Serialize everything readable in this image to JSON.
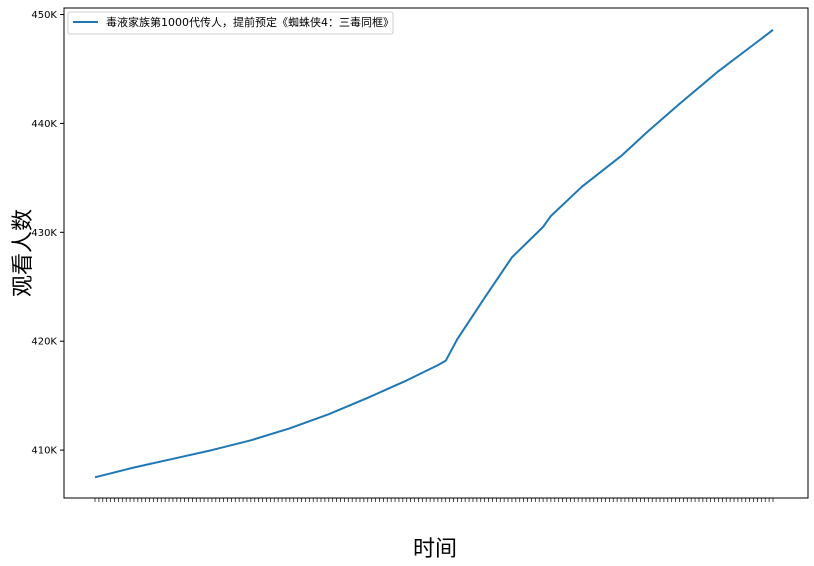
{
  "chart_data": {
    "type": "line",
    "title": "",
    "xlabel": "时间",
    "ylabel": "观看人数",
    "y_tick_labels": [
      "410K",
      "420K",
      "430K",
      "440K",
      "450K"
    ],
    "y_tick_values": [
      410000,
      420000,
      430000,
      440000,
      450000
    ],
    "ylim": [
      405600,
      450600
    ],
    "legend": {
      "placement": "top-left",
      "entries": [
        "毒液家族第1000代传人，提前预定《蜘蛛侠4：三毒同框》"
      ]
    },
    "grid": false,
    "colors": {
      "line": "#1f77b4"
    },
    "series": [
      {
        "name": "毒液家族第1000代传人，提前预定《蜘蛛侠4：三毒同框》",
        "anchors": [
          [
            0,
            407500
          ],
          [
            10,
            408400
          ],
          [
            20,
            409200
          ],
          [
            30,
            410000
          ],
          [
            40,
            410900
          ],
          [
            50,
            412000
          ],
          [
            60,
            413300
          ],
          [
            70,
            414800
          ],
          [
            80,
            416400
          ],
          [
            88,
            417800
          ],
          [
            90,
            418200
          ],
          [
            93,
            420200
          ],
          [
            100,
            424000
          ],
          [
            107,
            427700
          ],
          [
            115,
            430500
          ],
          [
            117,
            431500
          ],
          [
            125,
            434200
          ],
          [
            135,
            437000
          ],
          [
            142,
            439300
          ],
          [
            150,
            441800
          ],
          [
            160,
            444800
          ],
          [
            170,
            447500
          ],
          [
            174,
            448600
          ]
        ]
      }
    ],
    "x_tick_count": 175
  }
}
